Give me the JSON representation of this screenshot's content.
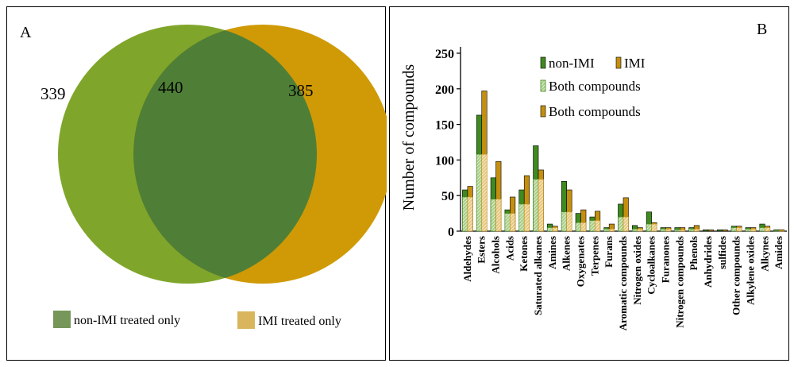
{
  "chart_data": [
    {
      "type": "venn",
      "panel_label": "A",
      "sets": [
        {
          "name": "non-IMI treated only",
          "color": "#7fa62a",
          "only": 339
        },
        {
          "name": "IMI treated only",
          "color": "#cf9a06",
          "only": 385
        }
      ],
      "intersection": 440,
      "intersection_color": "#4f7f37",
      "legend": [
        {
          "label": "non-IMI treated only",
          "color": "#76965a"
        },
        {
          "label": "IMI treated only",
          "color": "#d9b65e"
        }
      ]
    },
    {
      "type": "bar",
      "panel_label": "B",
      "ylabel": "Number of compounds",
      "ylim": [
        0,
        250
      ],
      "yticks": [
        "0",
        "50",
        "100",
        "150",
        "200",
        "250"
      ],
      "categories": [
        "Aldehydes",
        "Esters",
        "Alcohols",
        "Acids",
        "Ketones",
        "Saturated alkanes",
        "Amines",
        "Alkenes",
        "Oxygenates",
        "Terpenes",
        "Furans",
        "Aromatic compounds",
        "Nitrogen oxides",
        "Cycloalkanes",
        "Furanones",
        "Nitrogen compounds",
        "Phenols",
        "Anhydrides",
        "sulfides",
        "Other compounds",
        "Alkylene oxides",
        "Alkynes",
        "Amides"
      ],
      "series": [
        {
          "name": "non-IMI",
          "color": "#3f8a1f",
          "values": [
            58,
            163,
            75,
            30,
            58,
            120,
            10,
            70,
            25,
            20,
            5,
            38,
            8,
            27,
            5,
            5,
            5,
            2,
            2,
            7,
            5,
            10,
            2
          ]
        },
        {
          "name": "IMI",
          "color": "#c48f10",
          "values": [
            63,
            197,
            98,
            48,
            78,
            86,
            7,
            58,
            30,
            28,
            10,
            47,
            5,
            12,
            5,
            5,
            8,
            2,
            2,
            7,
            5,
            7,
            2
          ]
        }
      ],
      "both": [
        48,
        108,
        45,
        25,
        38,
        73,
        5,
        27,
        12,
        15,
        3,
        20,
        3,
        10,
        3,
        2,
        3,
        0,
        0,
        5,
        3,
        5,
        1
      ],
      "legend": [
        "non-IMI",
        "IMI",
        "Both compounds",
        "Both compounds"
      ],
      "colors": {
        "green": "#3f8a1f",
        "gold": "#c48f10",
        "hatch_green": "#a9cf88",
        "hatch_gold": "#e7c77c"
      }
    }
  ]
}
